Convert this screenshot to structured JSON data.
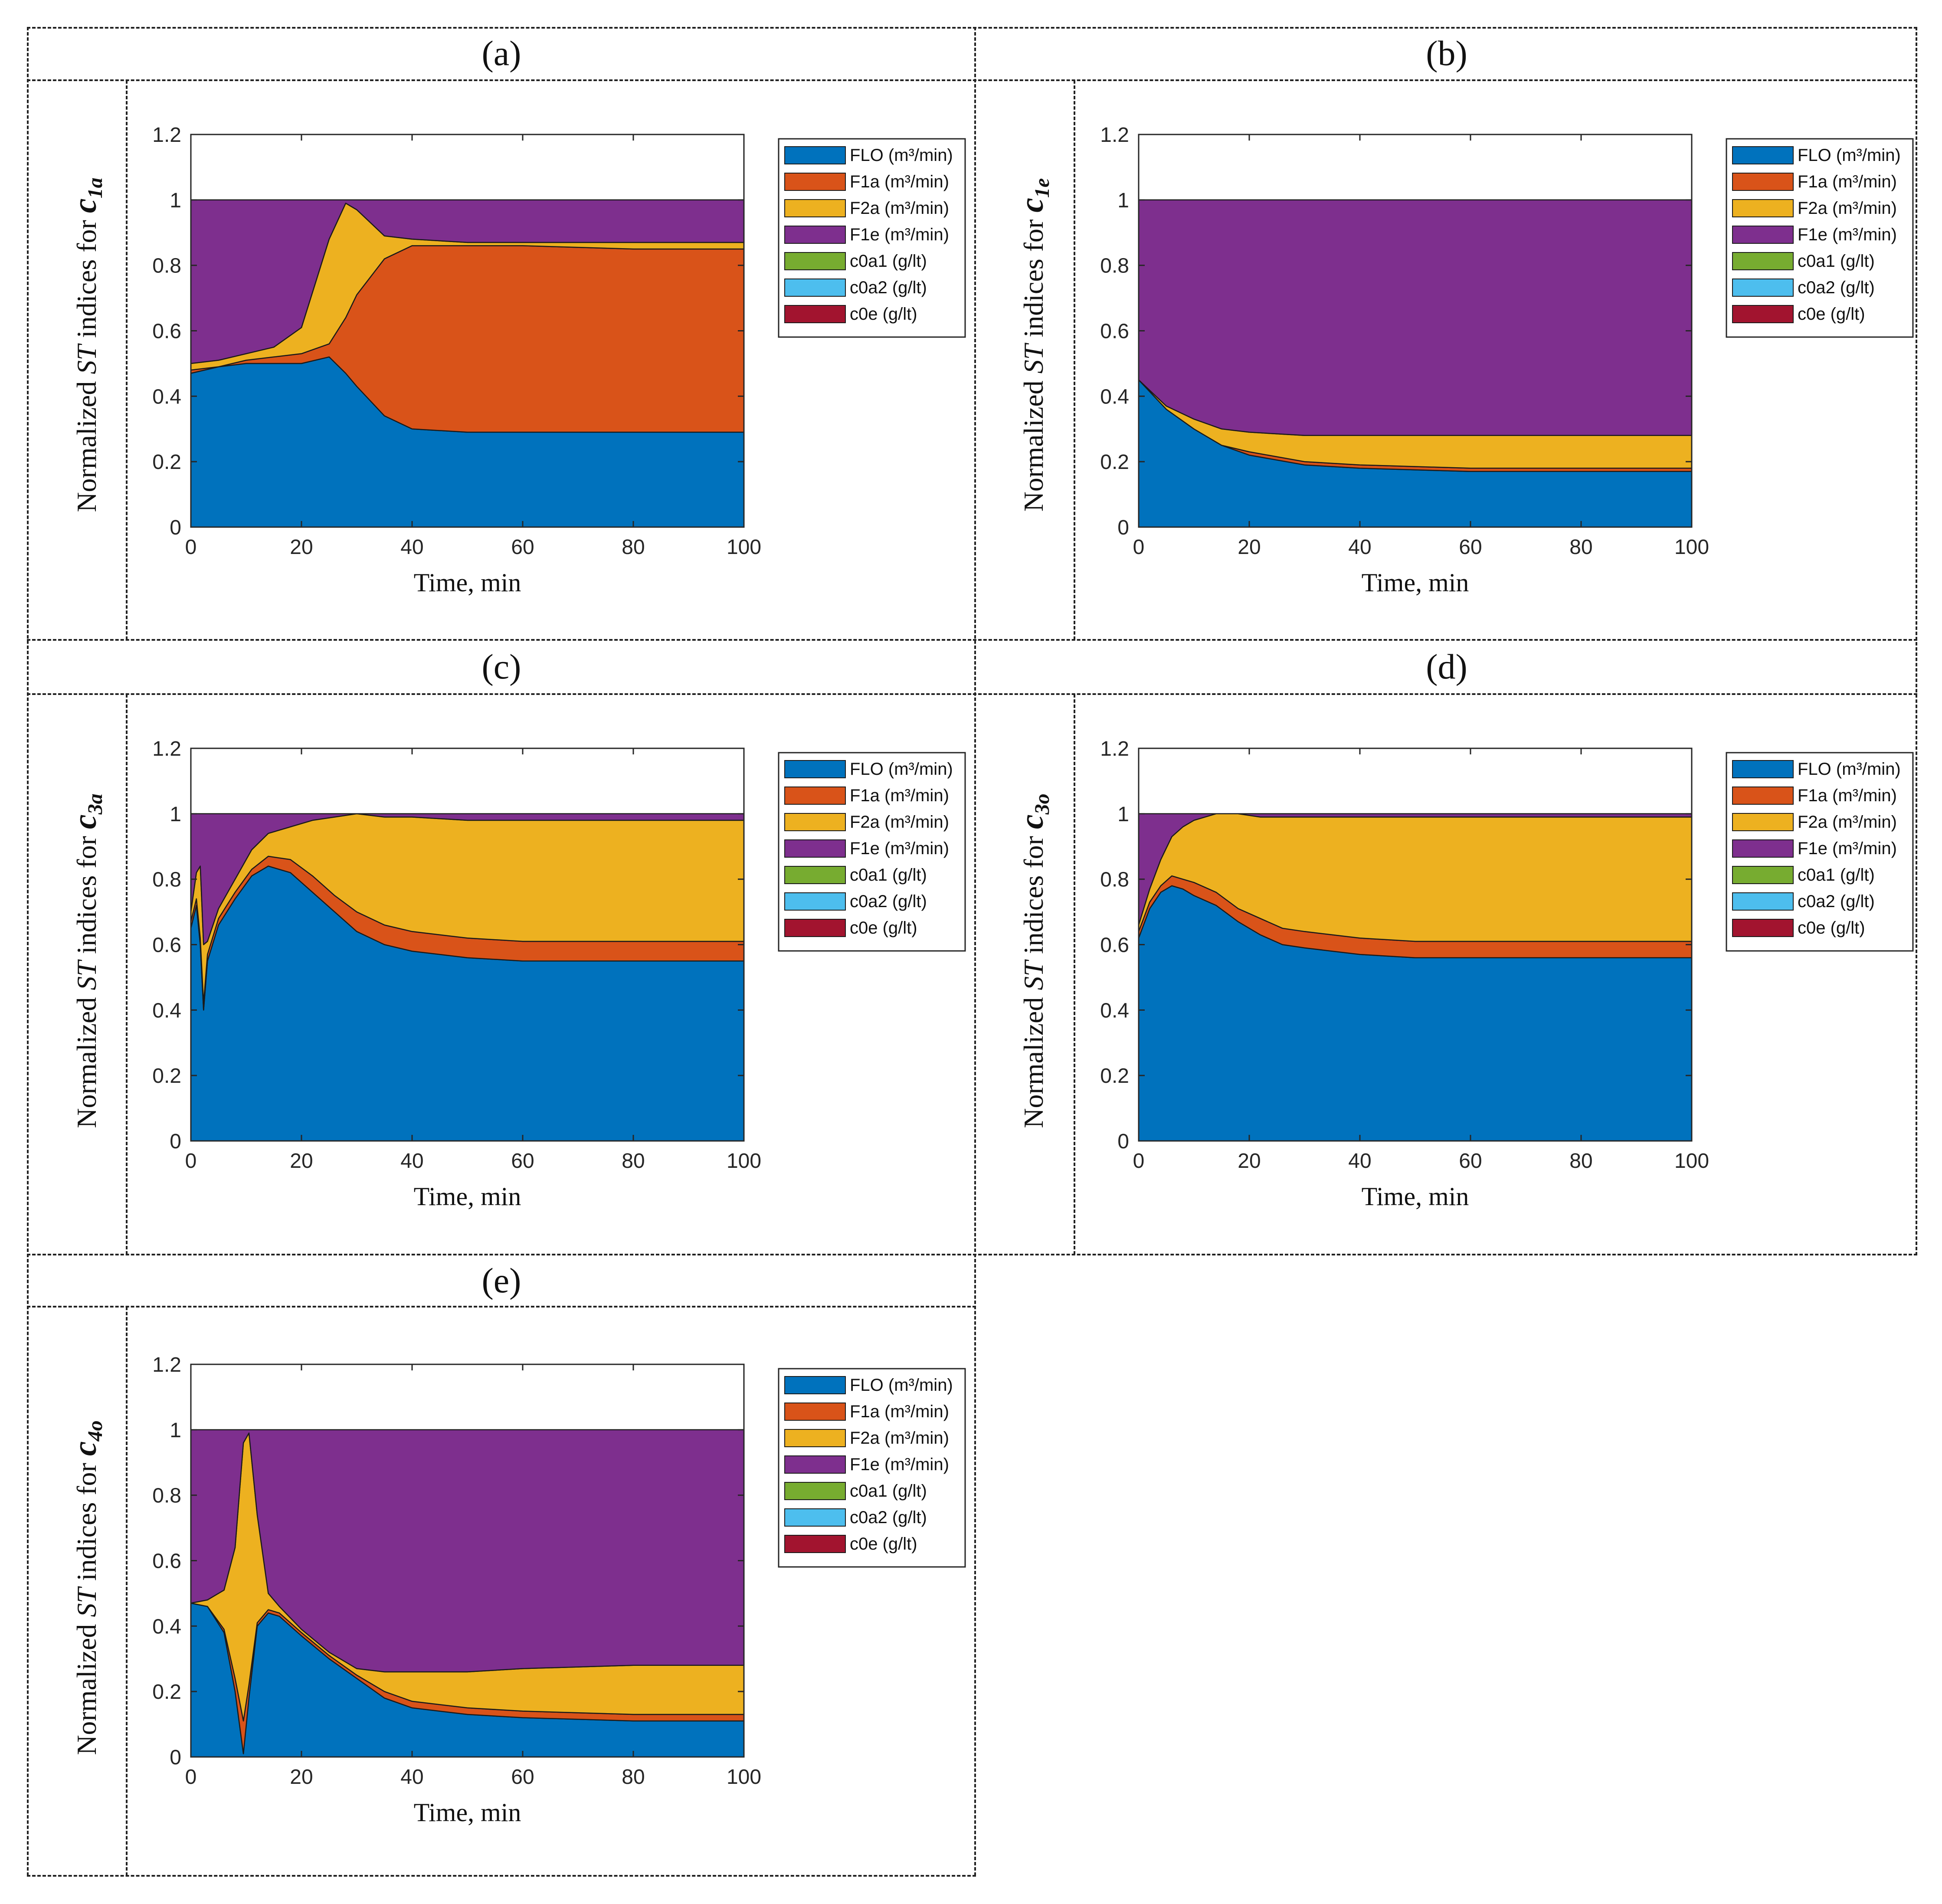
{
  "x_axis_label": "Time, min",
  "y_label_prefix": "Normalized ",
  "y_label_st": "ST",
  "y_label_mid": " indices for ",
  "legend": [
    {
      "name": "FLO (m³/min)",
      "color": "#0072bd"
    },
    {
      "name": "F1a (m³/min)",
      "color": "#d95319"
    },
    {
      "name": "F2a (m³/min)",
      "color": "#edb120"
    },
    {
      "name": "F1e (m³/min)",
      "color": "#7e2f8e"
    },
    {
      "name": "c0a1 (g/lt)",
      "color": "#77ac30"
    },
    {
      "name": "c0a2 (g/lt)",
      "color": "#4dbeee"
    },
    {
      "name": "c0e (g/lt)",
      "color": "#a2142f"
    }
  ],
  "panels": [
    {
      "label": "(a)",
      "var": "c",
      "sub": "1a"
    },
    {
      "label": "(b)",
      "var": "c",
      "sub": "1e"
    },
    {
      "label": "(c)",
      "var": "c",
      "sub": "3a"
    },
    {
      "label": "(d)",
      "var": "c",
      "sub": "3o"
    },
    {
      "label": "(e)",
      "var": "c",
      "sub": "4o"
    }
  ],
  "chart_data": [
    {
      "type": "area",
      "title": "(a)",
      "xlabel": "Time, min",
      "ylabel": "Normalized ST indices for c1a",
      "xlim": [
        0,
        100
      ],
      "ylim": [
        0,
        1.2
      ],
      "xticks": [
        0,
        20,
        40,
        60,
        80,
        100
      ],
      "yticks": [
        0,
        0.2,
        0.4,
        0.6,
        0.8,
        1,
        1.2
      ],
      "x": [
        0,
        5,
        10,
        15,
        20,
        25,
        28,
        30,
        35,
        40,
        50,
        60,
        80,
        100
      ],
      "series": [
        {
          "name": "FLO (m³/min)",
          "values": [
            0.47,
            0.49,
            0.5,
            0.5,
            0.5,
            0.52,
            0.47,
            0.43,
            0.34,
            0.3,
            0.29,
            0.29,
            0.29,
            0.29
          ]
        },
        {
          "name": "F1a (m³/min)",
          "values": [
            0.01,
            0.0,
            0.01,
            0.02,
            0.03,
            0.04,
            0.17,
            0.28,
            0.48,
            0.56,
            0.57,
            0.57,
            0.56,
            0.56
          ]
        },
        {
          "name": "F2a (m³/min)",
          "values": [
            0.02,
            0.02,
            0.02,
            0.03,
            0.08,
            0.32,
            0.35,
            0.26,
            0.07,
            0.02,
            0.01,
            0.01,
            0.02,
            0.02
          ]
        },
        {
          "name": "F1e (m³/min)",
          "values": [
            0.5,
            0.49,
            0.47,
            0.45,
            0.39,
            0.12,
            0.01,
            0.03,
            0.11,
            0.12,
            0.13,
            0.13,
            0.13,
            0.13
          ]
        }
      ]
    },
    {
      "type": "area",
      "title": "(b)",
      "xlabel": "Time, min",
      "ylabel": "Normalized ST indices for c1e",
      "xlim": [
        0,
        100
      ],
      "ylim": [
        0,
        1.2
      ],
      "xticks": [
        0,
        20,
        40,
        60,
        80,
        100
      ],
      "yticks": [
        0,
        0.2,
        0.4,
        0.6,
        0.8,
        1,
        1.2
      ],
      "x": [
        0,
        5,
        10,
        15,
        20,
        30,
        40,
        60,
        80,
        100
      ],
      "series": [
        {
          "name": "FLO (m³/min)",
          "values": [
            0.45,
            0.36,
            0.3,
            0.25,
            0.22,
            0.19,
            0.18,
            0.17,
            0.17,
            0.17
          ]
        },
        {
          "name": "F1a (m³/min)",
          "values": [
            0.0,
            0.0,
            0.0,
            0.0,
            0.01,
            0.01,
            0.01,
            0.01,
            0.01,
            0.01
          ]
        },
        {
          "name": "F2a (m³/min)",
          "values": [
            0.0,
            0.01,
            0.03,
            0.05,
            0.06,
            0.08,
            0.09,
            0.1,
            0.1,
            0.1
          ]
        },
        {
          "name": "F1e (m³/min)",
          "values": [
            0.55,
            0.63,
            0.67,
            0.7,
            0.71,
            0.72,
            0.72,
            0.72,
            0.72,
            0.72
          ]
        }
      ]
    },
    {
      "type": "area",
      "title": "(c)",
      "xlabel": "Time, min",
      "ylabel": "Normalized ST indices for c3a",
      "xlim": [
        0,
        100
      ],
      "ylim": [
        0,
        1.2
      ],
      "xticks": [
        0,
        20,
        40,
        60,
        80,
        100
      ],
      "yticks": [
        0,
        0.2,
        0.4,
        0.6,
        0.8,
        1,
        1.2
      ],
      "x": [
        0,
        1,
        1.7,
        2.3,
        3,
        5,
        8,
        11,
        14,
        18,
        22,
        26,
        30,
        35,
        40,
        50,
        60,
        80,
        100
      ],
      "series": [
        {
          "name": "FLO (m³/min)",
          "values": [
            0.65,
            0.72,
            0.6,
            0.4,
            0.55,
            0.66,
            0.74,
            0.81,
            0.84,
            0.82,
            0.76,
            0.7,
            0.64,
            0.6,
            0.58,
            0.56,
            0.55,
            0.55,
            0.55
          ]
        },
        {
          "name": "F1a (m³/min)",
          "values": [
            0.02,
            0.02,
            0.02,
            0.02,
            0.02,
            0.02,
            0.02,
            0.02,
            0.03,
            0.04,
            0.05,
            0.05,
            0.06,
            0.06,
            0.06,
            0.06,
            0.06,
            0.06,
            0.06
          ]
        },
        {
          "name": "F2a (m³/min)",
          "values": [
            0.03,
            0.08,
            0.22,
            0.18,
            0.04,
            0.03,
            0.04,
            0.06,
            0.07,
            0.1,
            0.17,
            0.24,
            0.3,
            0.33,
            0.35,
            0.36,
            0.37,
            0.37,
            0.37
          ]
        },
        {
          "name": "F1e (m³/min)",
          "values": [
            0.3,
            0.18,
            0.16,
            0.4,
            0.39,
            0.29,
            0.2,
            0.11,
            0.06,
            0.04,
            0.02,
            0.01,
            0.0,
            0.01,
            0.01,
            0.02,
            0.02,
            0.02,
            0.02
          ]
        }
      ]
    },
    {
      "type": "area",
      "title": "(d)",
      "xlabel": "Time, min",
      "ylabel": "Normalized ST indices for c3o",
      "xlim": [
        0,
        100
      ],
      "ylim": [
        0,
        1.2
      ],
      "xticks": [
        0,
        20,
        40,
        60,
        80,
        100
      ],
      "yticks": [
        0,
        0.2,
        0.4,
        0.6,
        0.8,
        1,
        1.2
      ],
      "x": [
        0,
        2,
        4,
        6,
        8,
        10,
        14,
        18,
        22,
        26,
        30,
        35,
        40,
        50,
        60,
        80,
        100
      ],
      "series": [
        {
          "name": "FLO (m³/min)",
          "values": [
            0.62,
            0.71,
            0.76,
            0.78,
            0.77,
            0.75,
            0.72,
            0.67,
            0.63,
            0.6,
            0.59,
            0.58,
            0.57,
            0.56,
            0.56,
            0.56,
            0.56
          ]
        },
        {
          "name": "F1a (m³/min)",
          "values": [
            0.02,
            0.02,
            0.02,
            0.03,
            0.03,
            0.04,
            0.04,
            0.04,
            0.05,
            0.05,
            0.05,
            0.05,
            0.05,
            0.05,
            0.05,
            0.05,
            0.05
          ]
        },
        {
          "name": "F2a (m³/min)",
          "values": [
            0.02,
            0.04,
            0.08,
            0.12,
            0.16,
            0.19,
            0.24,
            0.29,
            0.31,
            0.34,
            0.35,
            0.36,
            0.37,
            0.38,
            0.38,
            0.38,
            0.38
          ]
        },
        {
          "name": "F1e (m³/min)",
          "values": [
            0.34,
            0.23,
            0.14,
            0.07,
            0.04,
            0.02,
            0.0,
            0.0,
            0.01,
            0.01,
            0.01,
            0.01,
            0.01,
            0.01,
            0.01,
            0.01,
            0.01
          ]
        }
      ]
    },
    {
      "type": "area",
      "title": "(e)",
      "xlabel": "Time, min",
      "ylabel": "Normalized ST indices for c4o",
      "xlim": [
        0,
        100
      ],
      "ylim": [
        0,
        1.2
      ],
      "xticks": [
        0,
        20,
        40,
        60,
        80,
        100
      ],
      "yticks": [
        0,
        0.2,
        0.4,
        0.6,
        0.8,
        1,
        1.2
      ],
      "x": [
        0,
        3,
        6,
        8,
        9.5,
        10.5,
        12,
        14,
        16,
        20,
        25,
        30,
        35,
        40,
        50,
        60,
        80,
        100
      ],
      "series": [
        {
          "name": "FLO (m³/min)",
          "values": [
            0.47,
            0.46,
            0.38,
            0.2,
            0.01,
            0.18,
            0.4,
            0.44,
            0.43,
            0.37,
            0.3,
            0.24,
            0.18,
            0.15,
            0.13,
            0.12,
            0.11,
            0.11
          ]
        },
        {
          "name": "F1a (m³/min)",
          "values": [
            0.0,
            0.0,
            0.01,
            0.04,
            0.1,
            0.04,
            0.01,
            0.01,
            0.01,
            0.01,
            0.01,
            0.01,
            0.02,
            0.02,
            0.02,
            0.02,
            0.02,
            0.02
          ]
        },
        {
          "name": "F2a (m³/min)",
          "values": [
            0.0,
            0.02,
            0.12,
            0.4,
            0.85,
            0.77,
            0.33,
            0.05,
            0.02,
            0.01,
            0.01,
            0.02,
            0.06,
            0.09,
            0.11,
            0.13,
            0.15,
            0.15
          ]
        },
        {
          "name": "F1e (m³/min)",
          "values": [
            0.53,
            0.52,
            0.49,
            0.36,
            0.04,
            0.01,
            0.26,
            0.5,
            0.54,
            0.61,
            0.68,
            0.73,
            0.74,
            0.74,
            0.74,
            0.73,
            0.72,
            0.72
          ]
        }
      ]
    }
  ]
}
